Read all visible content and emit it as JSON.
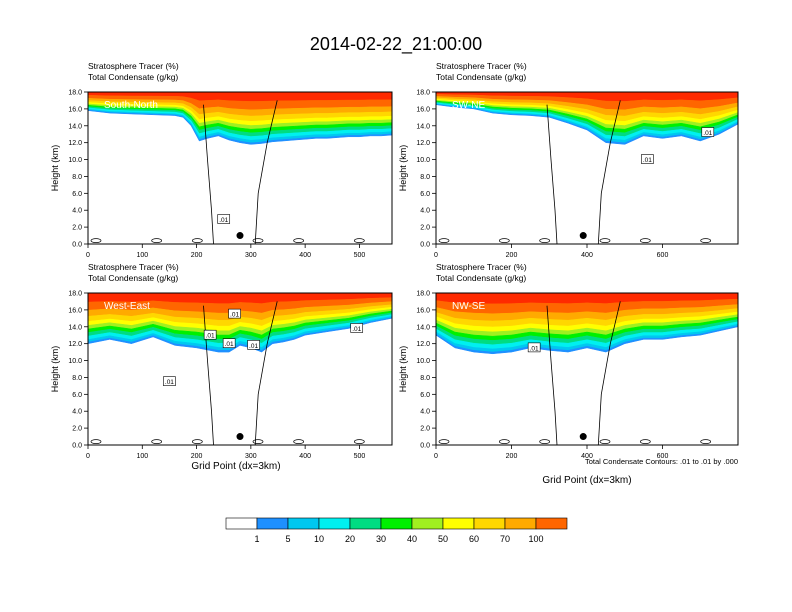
{
  "page": {
    "title": "2014-02-22_21:00:00",
    "footnote": "Total Condensate Contours: .01 to .01 by .000"
  },
  "panel_titles": {
    "line1": "Stratosphere Tracer   (%)",
    "line2": "Total Condensate   (g/kg)"
  },
  "colors": {
    "bands": [
      "#ffffff",
      "#1e90ff",
      "#00c8f0",
      "#00f0f0",
      "#00dc82",
      "#00f000",
      "#a0f020",
      "#ffff00",
      "#ffd700",
      "#ffaa00",
      "#ff6600",
      "#ff2a00"
    ],
    "contour": "#000000"
  },
  "chart_data": [
    {
      "type": "area",
      "title": "South-North",
      "xlabel": "",
      "ylabel": "Height (km)",
      "xlim": [
        0,
        560
      ],
      "ylim": [
        0,
        18
      ],
      "xticks": [
        "0",
        "100",
        "200",
        "300",
        "400",
        "500"
      ],
      "yticks": [
        "0.0",
        "2.0",
        "4.0",
        "6.0",
        "8.0",
        "10.0",
        "12.0",
        "14.0",
        "16.0",
        "18.0"
      ],
      "x": [
        0,
        40,
        80,
        120,
        160,
        175,
        190,
        205,
        220,
        240,
        260,
        280,
        300,
        320,
        340,
        360,
        380,
        400,
        420,
        440,
        460,
        480,
        500,
        520,
        540,
        560
      ],
      "bottom_height_km": [
        15.8,
        15.5,
        15.4,
        15.3,
        15.2,
        15.0,
        14.0,
        12.2,
        12.5,
        12.8,
        12.3,
        12.0,
        11.8,
        11.9,
        12.1,
        12.2,
        12.3,
        12.4,
        12.5,
        12.5,
        12.6,
        12.7,
        12.7,
        12.8,
        12.8,
        12.9
      ],
      "contour_labels": [
        ".01"
      ],
      "point": {
        "x": 280,
        "y": 1.0
      }
    },
    {
      "type": "area",
      "title": "SW-NE",
      "xlabel": "",
      "ylabel": "Height (km)",
      "xlim": [
        0,
        800
      ],
      "ylim": [
        0,
        18
      ],
      "xticks": [
        "0",
        "200",
        "400",
        "600"
      ],
      "yticks": [
        "0.0",
        "2.0",
        "4.0",
        "6.0",
        "8.0",
        "10.0",
        "12.0",
        "14.0",
        "16.0",
        "18.0"
      ],
      "x": [
        0,
        50,
        100,
        150,
        200,
        250,
        300,
        350,
        400,
        450,
        500,
        550,
        600,
        650,
        700,
        750,
        800
      ],
      "bottom_height_km": [
        16.5,
        16.2,
        16.0,
        15.5,
        15.3,
        15.2,
        15.0,
        14.3,
        13.5,
        12.0,
        11.8,
        12.8,
        12.5,
        12.8,
        12.2,
        13.0,
        14.2
      ],
      "contour_labels": [
        ".01",
        ".01"
      ],
      "point": {
        "x": 390,
        "y": 1.0
      }
    },
    {
      "type": "area",
      "title": "West-East",
      "xlabel": "Grid Point (dx=3km)",
      "ylabel": "Height (km)",
      "xlim": [
        0,
        560
      ],
      "ylim": [
        0,
        18
      ],
      "xticks": [
        "0",
        "100",
        "200",
        "300",
        "400",
        "500"
      ],
      "yticks": [
        "0.0",
        "2.0",
        "4.0",
        "6.0",
        "8.0",
        "10.0",
        "12.0",
        "14.0",
        "16.0",
        "18.0"
      ],
      "x": [
        0,
        40,
        80,
        120,
        160,
        200,
        240,
        260,
        280,
        300,
        320,
        340,
        360,
        380,
        400,
        440,
        480,
        520,
        560
      ],
      "bottom_height_km": [
        12.0,
        12.5,
        12.0,
        12.8,
        11.8,
        11.5,
        11.0,
        11.0,
        11.8,
        11.5,
        11.0,
        12.0,
        12.2,
        12.5,
        13.0,
        13.4,
        13.8,
        14.5,
        15.0
      ],
      "contour_labels": [
        ".01",
        ".01",
        ".01",
        ".01",
        ".01",
        ".01"
      ],
      "point": {
        "x": 280,
        "y": 1.0
      }
    },
    {
      "type": "area",
      "title": "NW-SE",
      "xlabel": "Grid Point (dx=3km)",
      "ylabel": "Height (km)",
      "xlim": [
        0,
        800
      ],
      "ylim": [
        0,
        18
      ],
      "xticks": [
        "0",
        "200",
        "400",
        "600"
      ],
      "yticks": [
        "0.0",
        "2.0",
        "4.0",
        "6.0",
        "8.0",
        "10.0",
        "12.0",
        "14.0",
        "16.0",
        "18.0"
      ],
      "x": [
        0,
        50,
        100,
        150,
        200,
        250,
        300,
        350,
        400,
        450,
        500,
        550,
        600,
        650,
        700,
        750,
        800
      ],
      "bottom_height_km": [
        13.0,
        11.5,
        11.0,
        10.8,
        11.0,
        11.5,
        11.2,
        11.0,
        11.5,
        11.0,
        12.0,
        12.5,
        12.5,
        12.8,
        13.0,
        13.5,
        14.0
      ],
      "contour_labels": [
        ".01"
      ],
      "point": {
        "x": 390,
        "y": 1.0
      }
    }
  ],
  "legend": {
    "labels": [
      "1",
      "5",
      "10",
      "20",
      "30",
      "40",
      "50",
      "60",
      "70",
      "100"
    ]
  }
}
